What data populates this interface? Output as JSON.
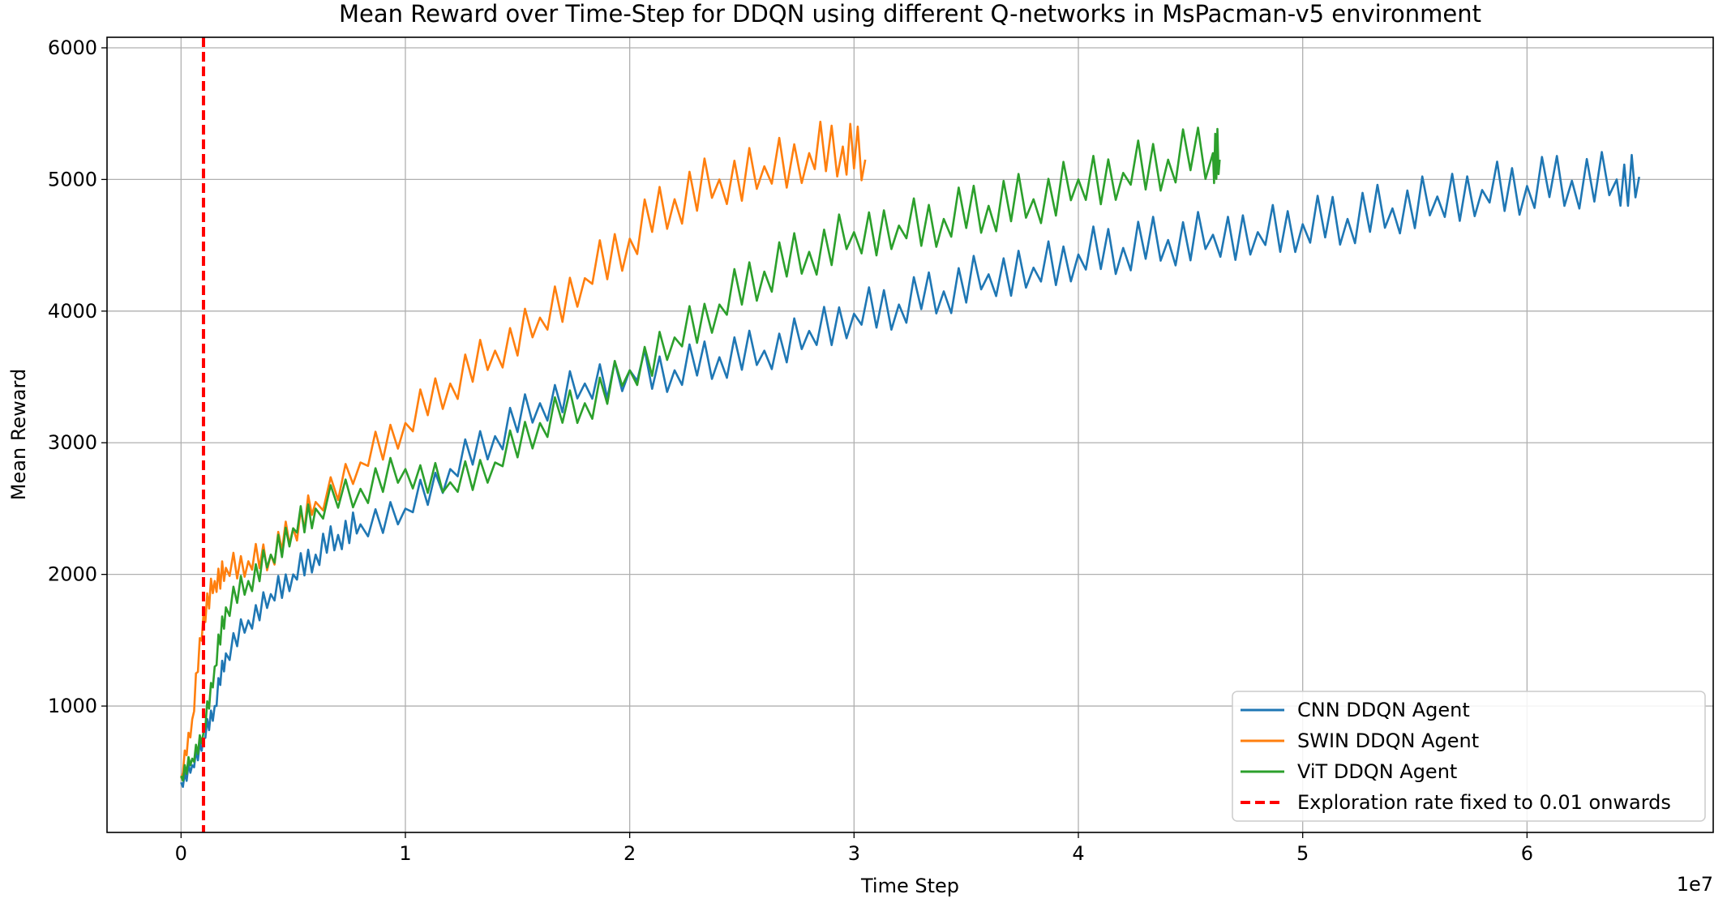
{
  "chart_data": {
    "type": "line",
    "title": "Mean Reward over Time-Step for DDQN using different Q-networks in MsPacman-v5 environment",
    "xlabel": "Time Step",
    "ylabel": "Mean Reward",
    "x_offset_label": "1e7",
    "xlim": [
      -0.33,
      6.83
    ],
    "ylim": [
      40,
      6080
    ],
    "x_ticks": [
      0,
      1,
      2,
      3,
      4,
      5,
      6
    ],
    "x_tick_labels": [
      "0",
      "1",
      "2",
      "3",
      "4",
      "5",
      "6"
    ],
    "y_ticks": [
      1000,
      2000,
      3000,
      4000,
      5000,
      6000
    ],
    "y_tick_labels": [
      "1000",
      "2000",
      "3000",
      "4000",
      "5000",
      "6000"
    ],
    "grid": true,
    "legend_position": "lower-right",
    "series": [
      {
        "name": "CNN DDQN Agent",
        "color": "#1f77b4",
        "x": [
          0,
          0.05,
          0.1,
          0.15,
          0.2,
          0.3,
          0.4,
          0.5,
          0.6,
          0.7,
          0.8,
          1.0,
          1.2,
          1.4,
          1.6,
          1.8,
          2.0,
          2.2,
          2.4,
          2.6,
          2.8,
          3.0,
          3.2,
          3.4,
          3.6,
          3.8,
          4.0,
          4.2,
          4.4,
          4.6,
          4.8,
          5.0,
          5.2,
          5.4,
          5.6,
          5.8,
          6.0,
          6.2,
          6.4,
          6.5
        ],
        "y": [
          420,
          550,
          750,
          1000,
          1400,
          1650,
          1850,
          2000,
          2150,
          2300,
          2380,
          2500,
          2800,
          3050,
          3300,
          3450,
          3550,
          3550,
          3650,
          3700,
          3850,
          3980,
          4050,
          4150,
          4280,
          4330,
          4430,
          4480,
          4540,
          4580,
          4600,
          4660,
          4700,
          4780,
          4870,
          4920,
          4950,
          4990,
          5000,
          5020
        ]
      },
      {
        "name": "SWIN DDQN Agent",
        "color": "#ff7f0e",
        "x": [
          0,
          0.05,
          0.1,
          0.15,
          0.2,
          0.3,
          0.4,
          0.5,
          0.6,
          0.8,
          1.0,
          1.2,
          1.4,
          1.6,
          1.8,
          2.0,
          2.2,
          2.4,
          2.6,
          2.8,
          2.95,
          3.05
        ],
        "y": [
          450,
          900,
          1700,
          1950,
          2050,
          2100,
          2150,
          2350,
          2550,
          2850,
          3150,
          3450,
          3700,
          3950,
          4250,
          4550,
          4850,
          5000,
          5100,
          5200,
          5250,
          5150
        ]
      },
      {
        "name": "ViT DDQN Agent",
        "color": "#2ca02c",
        "x": [
          0,
          0.05,
          0.1,
          0.15,
          0.2,
          0.3,
          0.4,
          0.5,
          0.6,
          0.8,
          1.0,
          1.2,
          1.4,
          1.6,
          1.8,
          2.0,
          2.2,
          2.4,
          2.6,
          2.8,
          3.0,
          3.2,
          3.4,
          3.6,
          3.8,
          4.0,
          4.2,
          4.4,
          4.6,
          4.63
        ],
        "y": [
          470,
          600,
          800,
          1300,
          1750,
          1950,
          2150,
          2350,
          2500,
          2650,
          2800,
          2700,
          2850,
          3150,
          3300,
          3550,
          3800,
          4050,
          4300,
          4450,
          4600,
          4650,
          4700,
          4800,
          4850,
          5000,
          5050,
          5150,
          5200,
          5150
        ]
      }
    ],
    "reference_line": {
      "name": "Exploration rate fixed to 0.01 onwards",
      "x": 0.1,
      "color": "#ff0000",
      "style": "dashed"
    }
  }
}
